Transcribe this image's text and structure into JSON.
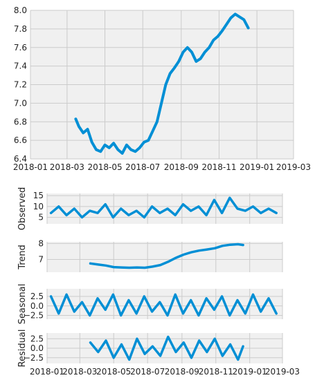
{
  "figure": {
    "background": "#ffffff",
    "panel_background": "#f0f0f0",
    "grid_color": "#cbcbcb",
    "line_color": "#008fd5",
    "text_color": "#222222"
  },
  "chart_data": [
    {
      "type": "line",
      "title": "",
      "xlabel": "",
      "ylabel": "",
      "xlim": [
        "2018-01-01",
        "2019-03-01"
      ],
      "ylim": [
        6.4,
        8.0
      ],
      "grid": true,
      "xticks": [
        "2018-01",
        "2018-03",
        "2018-05",
        "2018-07",
        "2018-09",
        "2018-11",
        "2019-01",
        "2019-03"
      ],
      "yticks": [
        "6.4",
        "6.6",
        "6.8",
        "7.0",
        "7.2",
        "7.4",
        "7.6",
        "7.8",
        "8.0"
      ],
      "series": [
        {
          "x": [
            "2018-03-15",
            "2018-03-20",
            "2018-03-27",
            "2018-04-03",
            "2018-04-10",
            "2018-04-17",
            "2018-04-24",
            "2018-05-01",
            "2018-05-08",
            "2018-05-15",
            "2018-05-22",
            "2018-05-29",
            "2018-06-05",
            "2018-06-12",
            "2018-06-19",
            "2018-06-26",
            "2018-07-03",
            "2018-07-10",
            "2018-07-17",
            "2018-07-24",
            "2018-07-31",
            "2018-08-07",
            "2018-08-14",
            "2018-08-21",
            "2018-08-28",
            "2018-09-04",
            "2018-09-11",
            "2018-09-18",
            "2018-09-25",
            "2018-10-02",
            "2018-10-09",
            "2018-10-16",
            "2018-10-23",
            "2018-10-30",
            "2018-11-06",
            "2018-11-13",
            "2018-11-20",
            "2018-11-27",
            "2018-12-04",
            "2018-12-11",
            "2018-12-18"
          ],
          "y": [
            6.83,
            6.75,
            6.68,
            6.72,
            6.58,
            6.5,
            6.48,
            6.55,
            6.52,
            6.57,
            6.5,
            6.46,
            6.55,
            6.5,
            6.48,
            6.52,
            6.58,
            6.6,
            6.7,
            6.8,
            7.0,
            7.2,
            7.32,
            7.38,
            7.45,
            7.55,
            7.6,
            7.55,
            7.45,
            7.48,
            7.55,
            7.6,
            7.68,
            7.72,
            7.78,
            7.85,
            7.92,
            7.96,
            7.93,
            7.9,
            7.81
          ]
        }
      ]
    },
    {
      "type": "line",
      "title": "",
      "xlabel": "",
      "ylabel": "Observed",
      "xlim": [
        "2018-01-01",
        "2019-03-01"
      ],
      "ylim": [
        2,
        16
      ],
      "grid": true,
      "yticks": [
        "5",
        "10",
        "15"
      ],
      "series": [
        {
          "x": [
            "2018-01-08",
            "2018-01-22",
            "2018-02-05",
            "2018-02-19",
            "2018-03-05",
            "2018-03-19",
            "2018-04-02",
            "2018-04-16",
            "2018-04-30",
            "2018-05-14",
            "2018-05-28",
            "2018-06-11",
            "2018-06-25",
            "2018-07-09",
            "2018-07-23",
            "2018-08-06",
            "2018-08-20",
            "2018-09-03",
            "2018-09-17",
            "2018-10-01",
            "2018-10-15",
            "2018-10-29",
            "2018-11-12",
            "2018-11-26",
            "2018-12-10",
            "2018-12-24",
            "2019-01-07",
            "2019-01-21",
            "2019-02-04",
            "2019-02-18"
          ],
          "y": [
            7,
            10,
            6,
            9,
            5,
            8,
            7,
            11,
            5,
            9,
            6,
            8,
            5,
            10,
            7,
            9,
            6,
            11,
            8,
            10,
            6,
            13,
            7,
            14,
            9,
            8,
            10,
            7,
            9,
            7
          ]
        }
      ]
    },
    {
      "type": "line",
      "title": "",
      "xlabel": "",
      "ylabel": "Trend",
      "xlim": [
        "2018-01-01",
        "2019-03-01"
      ],
      "ylim": [
        6.2,
        8.1
      ],
      "grid": true,
      "yticks": [
        "7",
        "8"
      ],
      "series": [
        {
          "x": [
            "2018-03-20",
            "2018-04-03",
            "2018-04-17",
            "2018-05-01",
            "2018-05-15",
            "2018-05-29",
            "2018-06-12",
            "2018-06-26",
            "2018-07-10",
            "2018-07-24",
            "2018-08-07",
            "2018-08-21",
            "2018-09-04",
            "2018-09-18",
            "2018-10-02",
            "2018-10-16",
            "2018-10-30",
            "2018-11-13",
            "2018-11-27",
            "2018-12-11",
            "2018-12-20"
          ],
          "y": [
            6.75,
            6.68,
            6.62,
            6.52,
            6.5,
            6.48,
            6.5,
            6.48,
            6.55,
            6.65,
            6.85,
            7.1,
            7.3,
            7.45,
            7.55,
            7.62,
            7.7,
            7.85,
            7.92,
            7.95,
            7.9
          ]
        }
      ]
    },
    {
      "type": "line",
      "title": "",
      "xlabel": "",
      "ylabel": "Seasonal",
      "xlim": [
        "2018-01-01",
        "2019-03-01"
      ],
      "ylim": [
        -3.5,
        4.5
      ],
      "grid": true,
      "yticks": [
        "2.5",
        "0.0",
        "−2.5"
      ],
      "series": [
        {
          "x": [
            "2018-01-08",
            "2018-01-22",
            "2018-02-05",
            "2018-02-19",
            "2018-03-05",
            "2018-03-19",
            "2018-04-02",
            "2018-04-16",
            "2018-04-30",
            "2018-05-14",
            "2018-05-28",
            "2018-06-11",
            "2018-06-25",
            "2018-07-09",
            "2018-07-23",
            "2018-08-06",
            "2018-08-20",
            "2018-09-03",
            "2018-09-17",
            "2018-10-01",
            "2018-10-15",
            "2018-10-29",
            "2018-11-12",
            "2018-11-26",
            "2018-12-10",
            "2018-12-24",
            "2019-01-07",
            "2019-01-21",
            "2019-02-04",
            "2019-02-18"
          ],
          "y": [
            2.5,
            -2.0,
            3.0,
            -1.5,
            1.0,
            -2.5,
            2.0,
            -1.0,
            3.0,
            -2.5,
            1.5,
            -2.0,
            2.5,
            -1.5,
            1.0,
            -2.5,
            3.0,
            -2.0,
            1.5,
            -2.5,
            2.0,
            -1.0,
            2.5,
            -2.5,
            1.5,
            -2.0,
            3.0,
            -1.5,
            2.0,
            -2.0
          ]
        }
      ]
    },
    {
      "type": "line",
      "title": "",
      "xlabel": "",
      "ylabel": "Residual",
      "xlim": [
        "2018-01-01",
        "2019-03-01"
      ],
      "ylim": [
        -4,
        4
      ],
      "grid": true,
      "xticks": [
        "2018-01",
        "2018-03",
        "2018-05",
        "2018-07",
        "2018-09",
        "2018-11",
        "2019-01",
        "2019-03"
      ],
      "yticks": [
        "2.5",
        "0.0",
        "−2.5"
      ],
      "series": [
        {
          "x": [
            "2018-03-20",
            "2018-04-03",
            "2018-04-17",
            "2018-05-01",
            "2018-05-15",
            "2018-05-29",
            "2018-06-12",
            "2018-06-26",
            "2018-07-10",
            "2018-07-24",
            "2018-08-07",
            "2018-08-21",
            "2018-09-04",
            "2018-09-18",
            "2018-10-02",
            "2018-10-16",
            "2018-10-30",
            "2018-11-13",
            "2018-11-27",
            "2018-12-11",
            "2018-12-20"
          ],
          "y": [
            1.5,
            -1.0,
            2.0,
            -2.5,
            1.0,
            -3.0,
            2.5,
            -1.5,
            0.5,
            -2.0,
            3.0,
            -1.0,
            1.5,
            -2.5,
            2.0,
            -1.0,
            2.5,
            -2.0,
            1.0,
            -3.0,
            0.5
          ]
        }
      ]
    }
  ]
}
